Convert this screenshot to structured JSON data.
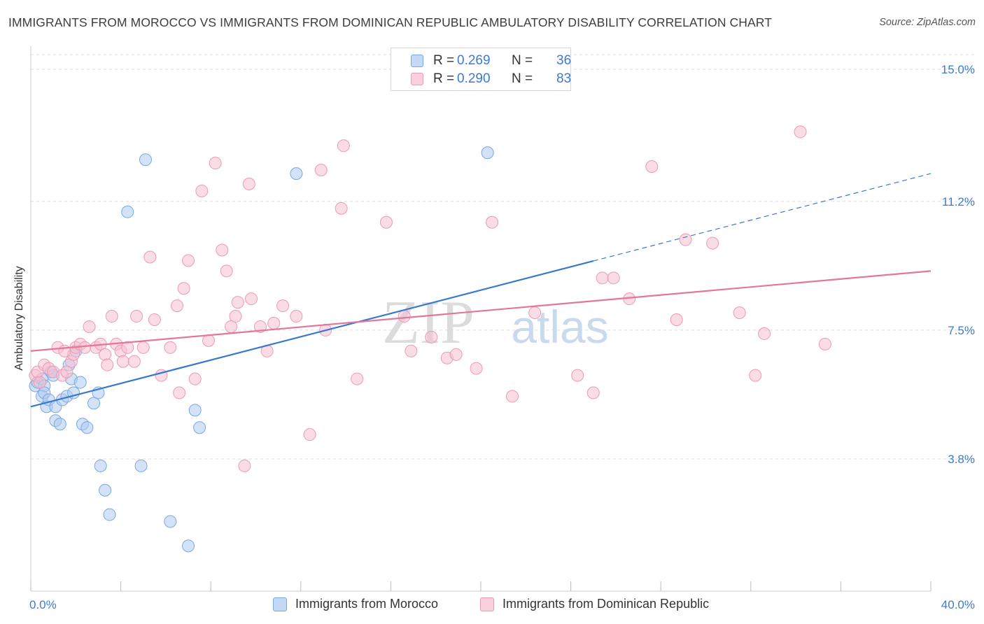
{
  "title": "IMMIGRANTS FROM MOROCCO VS IMMIGRANTS FROM DOMINICAN REPUBLIC AMBULATORY DISABILITY CORRELATION CHART",
  "source": "Source: ZipAtlas.com",
  "watermark": {
    "zip": "ZIP",
    "atlas": "atlas"
  },
  "legend": {
    "rows": [
      {
        "r_label": "R =",
        "r_value": "0.269",
        "n_label": "N =",
        "n_value": "36"
      },
      {
        "r_label": "R =",
        "r_value": "0.290",
        "n_label": "N =",
        "n_value": "83"
      }
    ]
  },
  "bottom_legend": [
    "Immigrants from Morocco",
    "Immigrants from Dominican Republic"
  ],
  "colors": {
    "blue_fill": "#aecbf0",
    "blue_stroke": "#7aa7e0",
    "blue_line": "#3a78d0",
    "pink_fill": "#f6bfd0",
    "pink_stroke": "#ec9ab5",
    "pink_line": "#e2769c",
    "tick_label": "#3a7bd5",
    "grid": "#dddddd"
  },
  "chart_data": {
    "type": "scatter",
    "title": "IMMIGRANTS FROM MOROCCO VS IMMIGRANTS FROM DOMINICAN REPUBLIC AMBULATORY DISABILITY CORRELATION CHART",
    "xlabel": "",
    "ylabel": "Ambulatory Disability",
    "xlim": [
      0,
      40
    ],
    "ylim": [
      0,
      15.5
    ],
    "x_tick_labels": [
      "0.0%",
      "40.0%"
    ],
    "y_ticks": [
      3.8,
      7.5,
      11.2,
      15.0
    ],
    "y_tick_labels": [
      "3.8%",
      "7.5%",
      "11.2%",
      "15.0%"
    ],
    "grid": true,
    "legend_position": "top-center",
    "series": [
      {
        "name": "Immigrants from Morocco",
        "color": "blue",
        "points": [
          [
            0.2,
            5.9
          ],
          [
            0.3,
            6.0
          ],
          [
            0.5,
            6.1
          ],
          [
            0.6,
            5.9
          ],
          [
            0.5,
            5.6
          ],
          [
            0.6,
            5.7
          ],
          [
            0.7,
            5.3
          ],
          [
            0.8,
            5.5
          ],
          [
            0.9,
            6.3
          ],
          [
            1.0,
            6.2
          ],
          [
            1.1,
            4.9
          ],
          [
            1.1,
            5.3
          ],
          [
            1.3,
            4.8
          ],
          [
            1.4,
            5.5
          ],
          [
            1.6,
            5.6
          ],
          [
            1.7,
            6.5
          ],
          [
            1.8,
            6.1
          ],
          [
            1.9,
            5.7
          ],
          [
            2.0,
            6.9
          ],
          [
            2.2,
            6.0
          ],
          [
            2.3,
            4.8
          ],
          [
            2.5,
            4.7
          ],
          [
            2.8,
            5.4
          ],
          [
            3.0,
            5.7
          ],
          [
            3.1,
            3.6
          ],
          [
            3.3,
            2.9
          ],
          [
            3.5,
            2.2
          ],
          [
            4.3,
            10.9
          ],
          [
            4.9,
            3.6
          ],
          [
            5.1,
            12.4
          ],
          [
            6.2,
            2.0
          ],
          [
            7.0,
            1.3
          ],
          [
            7.3,
            5.2
          ],
          [
            7.5,
            4.7
          ],
          [
            11.8,
            12.0
          ],
          [
            20.3,
            12.6
          ]
        ]
      },
      {
        "name": "Immigrants from Dominican Republic",
        "color": "pink",
        "points": [
          [
            0.2,
            6.2
          ],
          [
            0.3,
            6.3
          ],
          [
            0.4,
            6.0
          ],
          [
            0.6,
            6.5
          ],
          [
            0.8,
            6.4
          ],
          [
            1.0,
            6.3
          ],
          [
            1.2,
            7.0
          ],
          [
            1.4,
            6.2
          ],
          [
            1.6,
            6.3
          ],
          [
            1.8,
            6.6
          ],
          [
            1.9,
            6.8
          ],
          [
            2.0,
            7.0
          ],
          [
            2.2,
            7.1
          ],
          [
            2.4,
            7.0
          ],
          [
            2.6,
            7.6
          ],
          [
            2.9,
            7.0
          ],
          [
            3.1,
            7.1
          ],
          [
            3.3,
            6.8
          ],
          [
            3.6,
            7.9
          ],
          [
            3.8,
            7.1
          ],
          [
            4.0,
            6.9
          ],
          [
            4.1,
            6.6
          ],
          [
            4.3,
            7.0
          ],
          [
            4.6,
            6.6
          ],
          [
            4.7,
            7.9
          ],
          [
            5.0,
            7.0
          ],
          [
            5.3,
            9.6
          ],
          [
            5.5,
            7.8
          ],
          [
            5.8,
            6.2
          ],
          [
            6.2,
            7.0
          ],
          [
            6.5,
            8.2
          ],
          [
            6.6,
            5.7
          ],
          [
            7.0,
            9.5
          ],
          [
            7.3,
            6.1
          ],
          [
            7.6,
            11.5
          ],
          [
            7.9,
            7.2
          ],
          [
            8.2,
            12.3
          ],
          [
            8.7,
            9.2
          ],
          [
            8.9,
            7.6
          ],
          [
            9.2,
            8.3
          ],
          [
            9.5,
            3.6
          ],
          [
            9.7,
            11.7
          ],
          [
            9.8,
            8.4
          ],
          [
            10.2,
            7.6
          ],
          [
            10.5,
            6.9
          ],
          [
            10.8,
            7.7
          ],
          [
            11.2,
            8.2
          ],
          [
            11.8,
            7.9
          ],
          [
            12.4,
            4.5
          ],
          [
            12.9,
            12.1
          ],
          [
            13.1,
            7.5
          ],
          [
            13.8,
            11.0
          ],
          [
            13.9,
            12.8
          ],
          [
            14.5,
            6.1
          ],
          [
            15.8,
            10.6
          ],
          [
            16.6,
            7.9
          ],
          [
            16.9,
            6.9
          ],
          [
            17.8,
            7.3
          ],
          [
            18.5,
            6.7
          ],
          [
            18.9,
            6.8
          ],
          [
            19.8,
            6.4
          ],
          [
            20.5,
            10.6
          ],
          [
            21.4,
            5.6
          ],
          [
            22.4,
            8.0
          ],
          [
            24.3,
            6.2
          ],
          [
            25.0,
            5.7
          ],
          [
            25.4,
            9.0
          ],
          [
            25.9,
            9.0
          ],
          [
            26.6,
            8.4
          ],
          [
            27.6,
            12.2
          ],
          [
            28.7,
            7.8
          ],
          [
            29.1,
            10.1
          ],
          [
            30.3,
            10.0
          ],
          [
            31.5,
            8.0
          ],
          [
            32.2,
            6.2
          ],
          [
            32.6,
            7.4
          ],
          [
            34.2,
            13.2
          ],
          [
            35.3,
            7.1
          ],
          [
            8.5,
            9.8
          ],
          [
            9.1,
            7.9
          ],
          [
            3.4,
            6.5
          ],
          [
            1.5,
            6.9
          ],
          [
            6.8,
            8.7
          ]
        ]
      }
    ],
    "trendlines": [
      {
        "series": "Immigrants from Morocco",
        "x": [
          0,
          40
        ],
        "y": [
          5.3,
          12.0
        ],
        "solid_until_x": 25
      },
      {
        "series": "Immigrants from Dominican Republic",
        "x": [
          0,
          40
        ],
        "y": [
          6.9,
          9.2
        ]
      }
    ]
  }
}
